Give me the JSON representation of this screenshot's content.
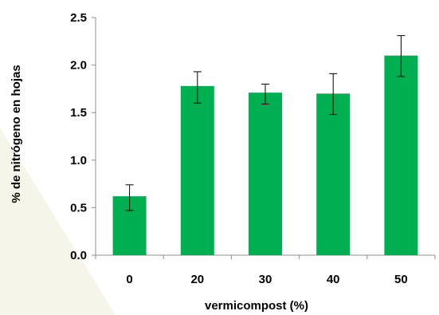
{
  "chart_data": {
    "type": "bar",
    "categories": [
      "0",
      "20",
      "30",
      "40",
      "50"
    ],
    "values": [
      0.62,
      1.78,
      1.71,
      1.7,
      2.1
    ],
    "error_low": [
      0.47,
      1.6,
      1.59,
      1.48,
      1.88
    ],
    "error_high": [
      0.74,
      1.93,
      1.8,
      1.91,
      2.31
    ],
    "xlabel": "vermicompost (%)",
    "ylabel": "% de nitrógeno en hojas",
    "ylim": [
      0,
      2.5
    ],
    "yticks": [
      "0.0",
      "0.5",
      "1.0",
      "1.5",
      "2.0",
      "2.5"
    ],
    "ytick_values": [
      0,
      0.5,
      1.0,
      1.5,
      2.0,
      2.5
    ],
    "grid": false,
    "bar_color": "#00b050",
    "background_accent": "#f6f5e9"
  }
}
